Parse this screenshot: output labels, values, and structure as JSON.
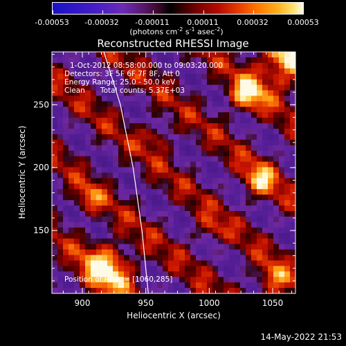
{
  "colorbar": {
    "tick_labels": [
      "-0.00053",
      "-0.00032",
      "-0.00011",
      "0.00011",
      "0.00032",
      "0.00053"
    ],
    "unit_text": "(photons cm",
    "unit_exp1": "-2",
    "unit_mid1": " s",
    "unit_exp2": "-1",
    "unit_mid2": " asec",
    "unit_exp3": "-2",
    "unit_end": ")"
  },
  "annotations": {
    "time_range": "1-Oct-2012 08:58:00.000 to 09:03:20.000",
    "detectors": "Detectors: 3F 5F 6F 7F 8F, Att 0",
    "energy_range": "Energy Range: 25.0 - 50.0 keV",
    "algorithm": "Clean",
    "total_counts": "Total counts: 5.37E+03",
    "peak_position": "Position of Peak = [1060,285]"
  },
  "timestamp": "14-May-2022 21:53",
  "chart_data": {
    "type": "heatmap",
    "title": "Reconstructed RHESSI Image",
    "xlabel": "Heliocentric X (arcsec)",
    "ylabel": "Heliocentric Y (arcsec)",
    "xlim": [
      876,
      1068
    ],
    "ylim": [
      100,
      292
    ],
    "xticks": [
      900,
      950,
      1000,
      1050
    ],
    "yticks": [
      150,
      200,
      250
    ],
    "colorbar_range": [
      -0.00053,
      0.00053
    ],
    "peak": [
      1060,
      285
    ],
    "limb_curve": [
      [
        917,
        292
      ],
      [
        930,
        250
      ],
      [
        940,
        200
      ],
      [
        947,
        150
      ],
      [
        952,
        100
      ]
    ]
  }
}
